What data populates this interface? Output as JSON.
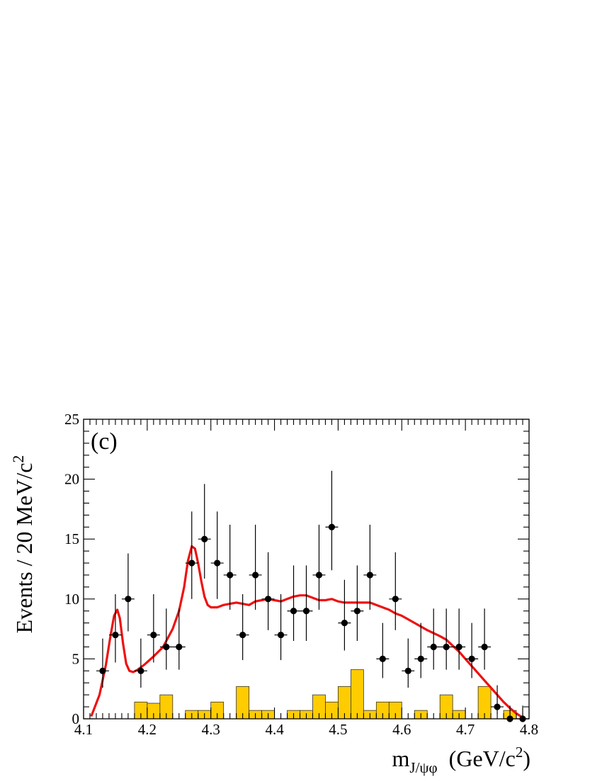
{
  "chart_data": {
    "type": "scatter",
    "title": "",
    "panel_label": "(c)",
    "ylabel": "Events / 20 MeV/c",
    "ylabel_sup": "2",
    "xlabel_main": "m",
    "xlabel_sub": "J/ψφ",
    "xlabel_unit": "(GeV/c",
    "xlabel_unit_sup": "2",
    "xlabel_unit_close": ")",
    "xlim": [
      4.1,
      4.8
    ],
    "ylim": [
      0,
      25
    ],
    "x_ticks": [
      {
        "value": 4.1,
        "label": "4.1"
      },
      {
        "value": 4.2,
        "label": "4.2"
      },
      {
        "value": 4.3,
        "label": "4.3"
      },
      {
        "value": 4.4,
        "label": "4.4"
      },
      {
        "value": 4.5,
        "label": "4.5"
      },
      {
        "value": 4.6,
        "label": "4.6"
      },
      {
        "value": 4.7,
        "label": "4.7"
      },
      {
        "value": 4.8,
        "label": "4.8"
      }
    ],
    "y_ticks": [
      {
        "value": 0,
        "label": "0"
      },
      {
        "value": 5,
        "label": "5"
      },
      {
        "value": 10,
        "label": "10"
      },
      {
        "value": 15,
        "label": "15"
      },
      {
        "value": 20,
        "label": "20"
      },
      {
        "value": 25,
        "label": "25"
      }
    ],
    "grid": false,
    "bin_width": 0.02,
    "data_points": {
      "x": [
        4.13,
        4.15,
        4.17,
        4.19,
        4.21,
        4.23,
        4.25,
        4.27,
        4.29,
        4.31,
        4.33,
        4.35,
        4.37,
        4.39,
        4.41,
        4.43,
        4.45,
        4.47,
        4.49,
        4.51,
        4.53,
        4.55,
        4.57,
        4.59,
        4.61,
        4.63,
        4.65,
        4.67,
        4.69,
        4.71,
        4.73,
        4.75,
        4.77,
        4.79
      ],
      "y": [
        4,
        7,
        10,
        4,
        7,
        6,
        6,
        13,
        15,
        13,
        12,
        7,
        12,
        10,
        7,
        9,
        9,
        12,
        16,
        8,
        9,
        12,
        5,
        10,
        4,
        5,
        6,
        6,
        6,
        5,
        6,
        1,
        0,
        0
      ],
      "err_low": [
        1.4,
        2.3,
        2.7,
        1.4,
        2.3,
        1.9,
        1.9,
        3.0,
        3.3,
        3.0,
        2.9,
        2.1,
        2.9,
        2.6,
        2.1,
        2.5,
        2.5,
        2.9,
        3.6,
        2.3,
        2.5,
        2.9,
        1.6,
        2.6,
        1.4,
        1.6,
        1.9,
        1.9,
        1.9,
        1.6,
        1.9,
        0.6,
        0,
        0
      ],
      "err_high": [
        2.7,
        3.4,
        3.8,
        2.7,
        3.4,
        3.2,
        3.2,
        4.3,
        4.6,
        4.3,
        4.2,
        3.4,
        4.2,
        3.9,
        3.4,
        3.8,
        3.8,
        4.2,
        4.7,
        3.6,
        3.8,
        4.2,
        3.0,
        3.9,
        2.7,
        3.0,
        3.2,
        3.2,
        3.2,
        3.0,
        3.2,
        1.8,
        1.1,
        1.1
      ]
    },
    "background_histogram": {
      "color": "#FFCC00",
      "bins": [
        {
          "x0": 4.18,
          "x1": 4.2,
          "value": 1.4
        },
        {
          "x0": 4.2,
          "x1": 4.22,
          "value": 1.3
        },
        {
          "x0": 4.22,
          "x1": 4.24,
          "value": 2.0
        },
        {
          "x0": 4.26,
          "x1": 4.28,
          "value": 0.7
        },
        {
          "x0": 4.28,
          "x1": 4.3,
          "value": 0.7
        },
        {
          "x0": 4.3,
          "x1": 4.32,
          "value": 1.4
        },
        {
          "x0": 4.34,
          "x1": 4.36,
          "value": 2.7
        },
        {
          "x0": 4.36,
          "x1": 4.38,
          "value": 0.7
        },
        {
          "x0": 4.38,
          "x1": 4.4,
          "value": 0.7
        },
        {
          "x0": 4.42,
          "x1": 4.44,
          "value": 0.7
        },
        {
          "x0": 4.44,
          "x1": 4.46,
          "value": 0.7
        },
        {
          "x0": 4.46,
          "x1": 4.48,
          "value": 2.0
        },
        {
          "x0": 4.48,
          "x1": 4.5,
          "value": 1.4
        },
        {
          "x0": 4.5,
          "x1": 4.52,
          "value": 2.7
        },
        {
          "x0": 4.52,
          "x1": 4.54,
          "value": 4.1
        },
        {
          "x0": 4.54,
          "x1": 4.56,
          "value": 0.7
        },
        {
          "x0": 4.56,
          "x1": 4.58,
          "value": 1.4
        },
        {
          "x0": 4.58,
          "x1": 4.6,
          "value": 1.4
        },
        {
          "x0": 4.62,
          "x1": 4.64,
          "value": 0.7
        },
        {
          "x0": 4.66,
          "x1": 4.68,
          "value": 2.0
        },
        {
          "x0": 4.68,
          "x1": 4.7,
          "value": 0.7
        },
        {
          "x0": 4.72,
          "x1": 4.74,
          "value": 2.7
        },
        {
          "x0": 4.76,
          "x1": 4.78,
          "value": 0.7
        }
      ]
    },
    "fit_curve": {
      "color": "#EE1111",
      "x": [
        4.112,
        4.125,
        4.135,
        4.142,
        4.148,
        4.153,
        4.157,
        4.162,
        4.167,
        4.172,
        4.178,
        4.185,
        4.195,
        4.21,
        4.225,
        4.24,
        4.25,
        4.258,
        4.264,
        4.27,
        4.275,
        4.28,
        4.285,
        4.29,
        4.295,
        4.3,
        4.31,
        4.32,
        4.33,
        4.34,
        4.35,
        4.36,
        4.37,
        4.38,
        4.39,
        4.4,
        4.41,
        4.42,
        4.43,
        4.44,
        4.45,
        4.46,
        4.47,
        4.48,
        4.49,
        4.5,
        4.51,
        4.52,
        4.53,
        4.54,
        4.55,
        4.56,
        4.57,
        4.58,
        4.59,
        4.6,
        4.62,
        4.64,
        4.66,
        4.67,
        4.68,
        4.69,
        4.7,
        4.71,
        4.72,
        4.73,
        4.74,
        4.75,
        4.76,
        4.77,
        4.78,
        4.79
      ],
      "y": [
        0.2,
        2.0,
        4.5,
        6.8,
        8.6,
        9.1,
        8.4,
        6.3,
        4.6,
        4.0,
        3.9,
        4.1,
        4.5,
        5.2,
        6.0,
        7.5,
        9.0,
        11.0,
        13.2,
        14.4,
        14.2,
        13.0,
        11.5,
        10.2,
        9.5,
        9.3,
        9.3,
        9.5,
        9.6,
        9.7,
        9.6,
        9.5,
        9.8,
        9.9,
        10.0,
        9.9,
        9.8,
        10.0,
        10.2,
        10.3,
        10.3,
        10.1,
        9.9,
        9.9,
        10.0,
        9.8,
        9.7,
        9.7,
        9.7,
        9.7,
        9.7,
        9.5,
        9.3,
        9.1,
        8.8,
        8.6,
        8.0,
        7.4,
        6.9,
        6.6,
        6.1,
        5.6,
        5.0,
        4.4,
        3.8,
        3.2,
        2.6,
        2.0,
        1.4,
        0.9,
        0.45,
        0.1
      ]
    }
  }
}
